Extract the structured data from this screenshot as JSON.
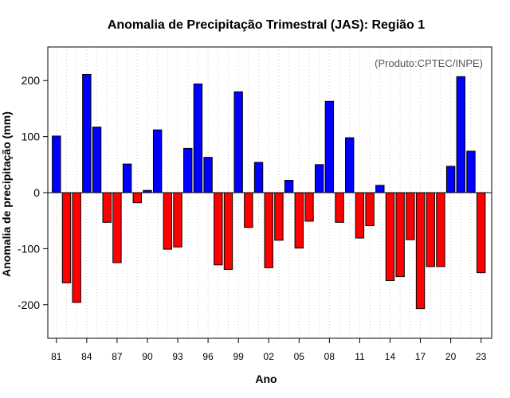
{
  "chart_data": {
    "type": "bar",
    "title": "Anomalia de Precipitação Trimestral (JAS): Região 1",
    "xlabel": "Ano",
    "ylabel": "Anomalia de precipitação (mm)",
    "annotation": "(Produto:CPTEC/INPE)",
    "ylim": [
      -260,
      260
    ],
    "yticks": [
      -200,
      -100,
      0,
      100,
      200
    ],
    "grid": true,
    "colors": {
      "positive": "#0000ff",
      "negative": "#ff0000",
      "grid": "#cccccc"
    },
    "years": [
      "81",
      "82",
      "83",
      "84",
      "85",
      "86",
      "87",
      "88",
      "89",
      "90",
      "91",
      "92",
      "93",
      "94",
      "95",
      "96",
      "97",
      "98",
      "99",
      "00",
      "01",
      "02",
      "03",
      "04",
      "05",
      "06",
      "07",
      "08",
      "09",
      "10",
      "11",
      "12",
      "13",
      "14",
      "15",
      "16",
      "17",
      "18",
      "19",
      "20",
      "21",
      "22",
      "23"
    ],
    "xtick_labels": [
      "81",
      "84",
      "87",
      "90",
      "93",
      "96",
      "99",
      "02",
      "05",
      "08",
      "11",
      "14",
      "17",
      "20",
      "23"
    ],
    "values": [
      101,
      -161,
      -196,
      211,
      117,
      -53,
      -125,
      51,
      -18,
      4,
      112,
      -101,
      -97,
      79,
      194,
      63,
      -129,
      -137,
      180,
      -62,
      54,
      -134,
      -85,
      22,
      -99,
      -51,
      50,
      163,
      -53,
      98,
      -81,
      -59,
      13,
      -157,
      -150,
      -84,
      -207,
      -132,
      -132,
      47,
      207,
      74,
      -143
    ]
  }
}
